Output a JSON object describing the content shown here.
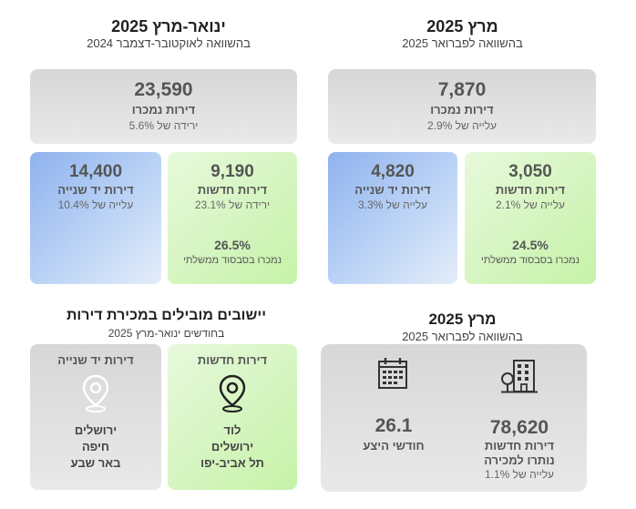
{
  "left_section": {
    "title": "ינואר-מרץ 2025",
    "subtitle": "בהשוואה לאוקטובר-דצמבר 2024",
    "total": {
      "value": "23,590",
      "label": "דירות נמכרו",
      "change": "ירידה של 5.6%"
    },
    "second_hand": {
      "value": "14,400",
      "label": "דירות יד שנייה",
      "change": "עלייה של 10.4%"
    },
    "new_apts": {
      "value": "9,190",
      "label": "דירות חדשות",
      "change": "ירידה של 23.1%",
      "subsidized_pct": "26.5%",
      "subsidized_label": "נמכרו בסבסוד ממשלתי"
    }
  },
  "right_section": {
    "title": "מרץ 2025",
    "subtitle": "בהשוואה לפברואר 2025",
    "total": {
      "value": "7,870",
      "label": "דירות נמכרו",
      "change": "עלייה של 2.9%"
    },
    "second_hand": {
      "value": "4,820",
      "label": "דירות יד שנייה",
      "change": "עלייה של 3.3%"
    },
    "new_apts": {
      "value": "3,050",
      "label": "דירות חדשות",
      "change": "עלייה של 2.1%",
      "subsidized_pct": "24.5%",
      "subsidized_label": "נמכרו בסבסוד ממשלתי"
    }
  },
  "leading_section": {
    "title": "יישובים מובילים במכירת דירות",
    "subtitle": "בחודשים ינואר-מרץ 2025",
    "second_hand": {
      "label": "דירות יד שנייה",
      "cities": [
        "ירושלים",
        "חיפה",
        "באר שבע"
      ]
    },
    "new_apts": {
      "label": "דירות חדשות",
      "cities": [
        "לוד",
        "ירושלים",
        "תל אביב-יפו"
      ]
    }
  },
  "inventory_section": {
    "title": "מרץ 2025",
    "subtitle": "בהשוואה לפברואר 2025",
    "unsold": {
      "value": "78,620",
      "label_line1": "דירות חדשות",
      "label_line2": "נותרו למכירה",
      "change": "עלייה של 1.1%"
    },
    "supply": {
      "value": "26.1",
      "label": "חודשי היצע"
    }
  },
  "icons": [
    "building-icon",
    "calendar-icon",
    "map-pin-icon"
  ]
}
